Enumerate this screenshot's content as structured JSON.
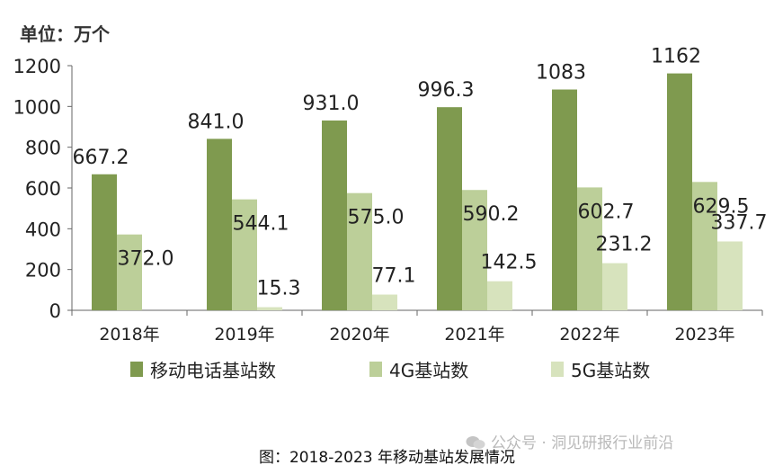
{
  "chart_data": {
    "type": "bar",
    "unit_label": "单位：万个",
    "categories": [
      "2018年",
      "2019年",
      "2020年",
      "2021年",
      "2022年",
      "2023年"
    ],
    "series": [
      {
        "name": "移动电话基站数",
        "color": "#7f9a4f",
        "values": [
          667.2,
          841.0,
          931.0,
          996.3,
          1083,
          1162
        ],
        "labels": [
          "667.2",
          "841.0",
          "931.0",
          "996.3",
          "1083",
          "1162"
        ]
      },
      {
        "name": "4G基站数",
        "color": "#bccf99",
        "values": [
          372.0,
          544.1,
          575.0,
          590.2,
          602.7,
          629.5
        ],
        "labels": [
          "372.0",
          "544.1",
          "575.0",
          "590.2",
          "602.7",
          "629.5"
        ]
      },
      {
        "name": "5G基站数",
        "color": "#d7e3bd",
        "values": [
          null,
          15.3,
          77.1,
          142.5,
          231.2,
          337.7
        ],
        "labels": [
          "",
          "15.3",
          "77.1",
          "142.5",
          "231.2",
          "337.7"
        ]
      }
    ],
    "yticks": [
      0,
      200,
      400,
      600,
      800,
      1000,
      1200
    ],
    "ylim": [
      0,
      1200
    ],
    "legend_position": "bottom",
    "title": "图：2018-2023 年移动基站发展情况"
  },
  "caption": "图：2018-2023 年移动基站发展情况",
  "watermark": "公众号 · 洞见研报行业前沿"
}
